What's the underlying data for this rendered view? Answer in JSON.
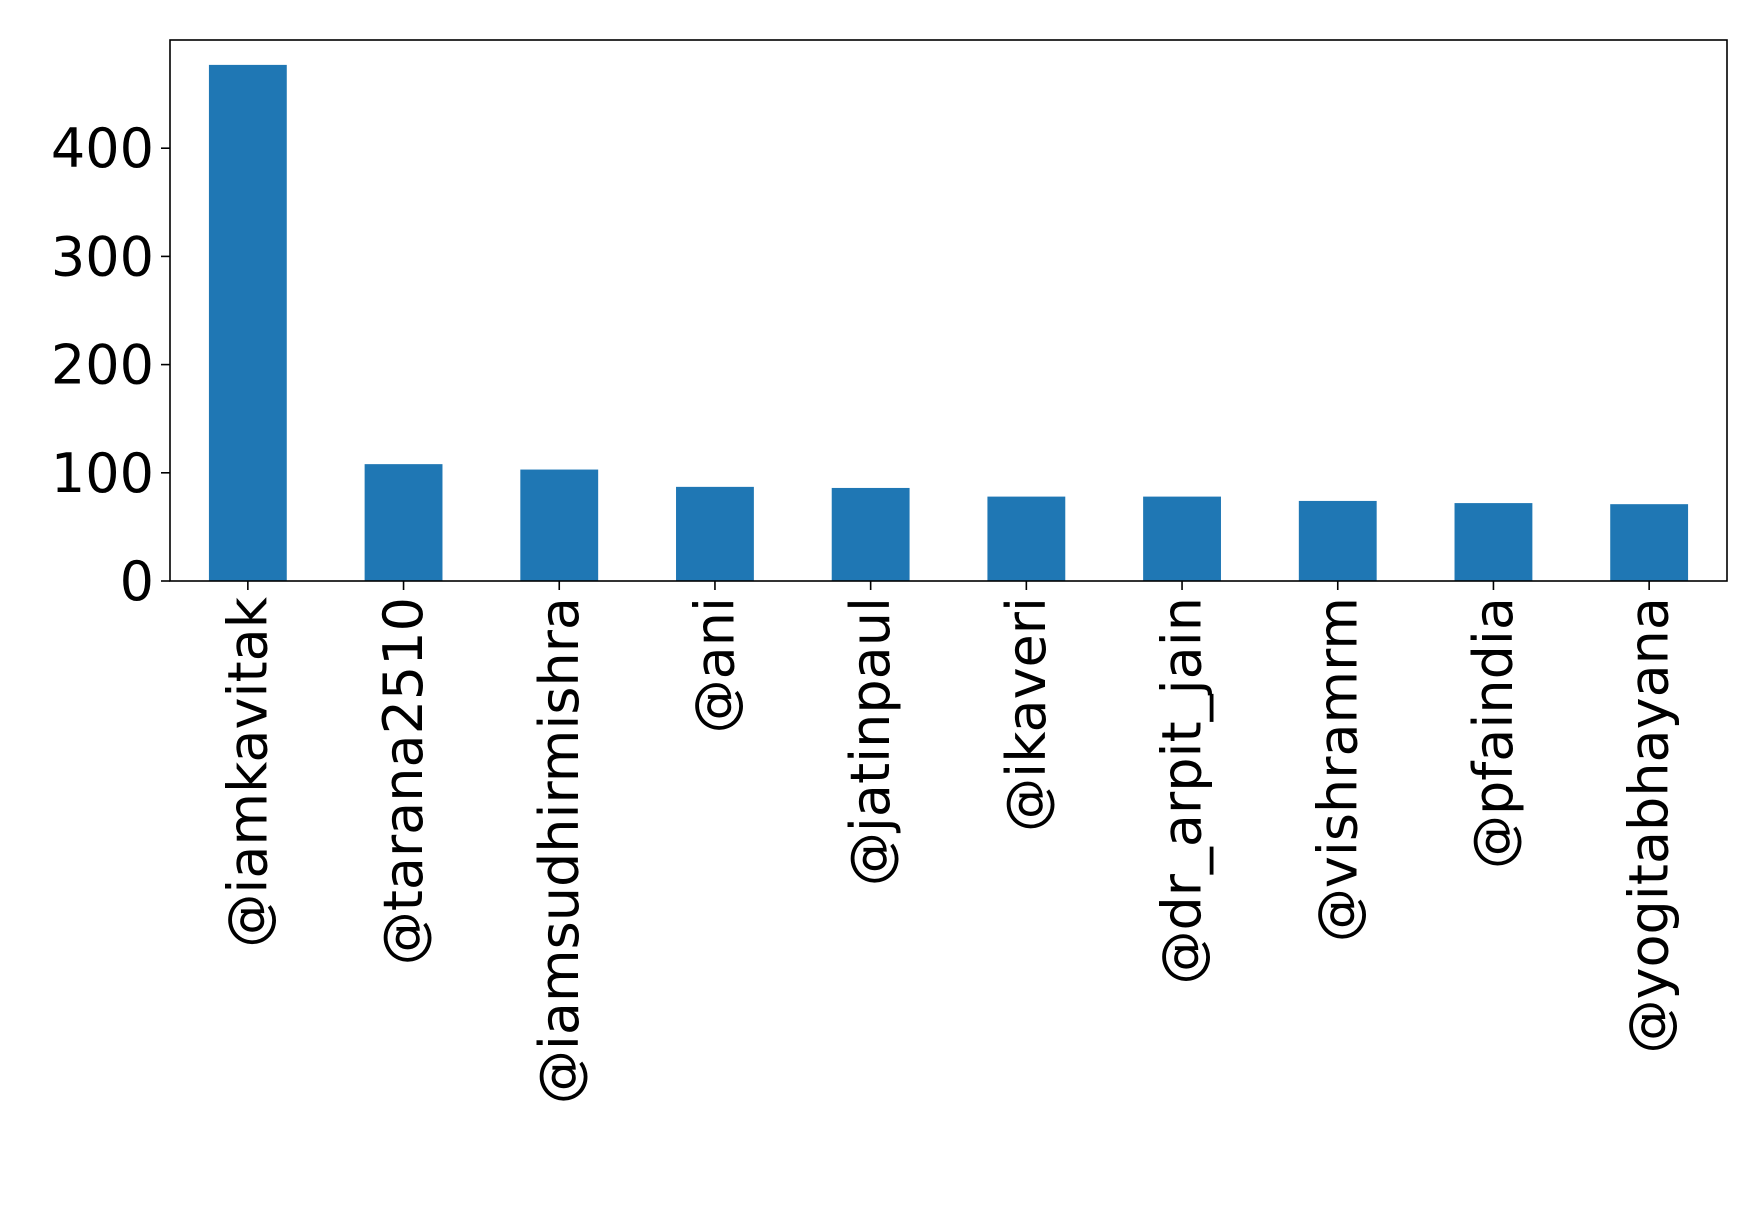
{
  "chart_data": {
    "type": "bar",
    "categories": [
      "@iamkavitak",
      "@tarana2510",
      "@iamsudhirmishra",
      "@ani",
      "@jatinpaul",
      "@ikaveri",
      "@dr_arpit_jain",
      "@vishramrm",
      "@pfaindia",
      "@yogitabhayana"
    ],
    "values": [
      477,
      108,
      103,
      87,
      86,
      78,
      78,
      74,
      72,
      71
    ],
    "title": "",
    "xlabel": "",
    "ylabel": "",
    "ylim": [
      0,
      500
    ],
    "yticks": [
      0,
      100,
      200,
      300,
      400
    ],
    "bar_color": "#1f77b4",
    "grid": false,
    "legend": "none"
  }
}
